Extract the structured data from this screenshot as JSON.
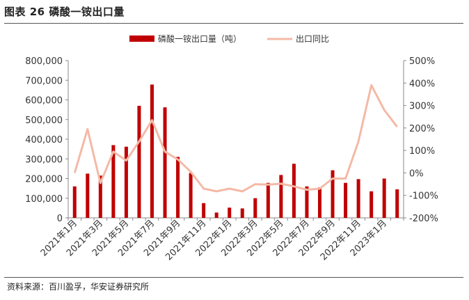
{
  "figure": {
    "title": "图表 26  磷酸一铵出口量",
    "source": "资料来源：百川盈孚，华安证券研究所"
  },
  "colors": {
    "bar": "#c00000",
    "line": "#f4b9a6",
    "rule": "#555555"
  },
  "chart_data": {
    "type": "bar",
    "title": "",
    "xlabel": "",
    "ylabel": "",
    "legend_position": "top",
    "grid": false,
    "categories": [
      "2021年1月",
      "2021年2月",
      "2021年3月",
      "2021年4月",
      "2021年5月",
      "2021年6月",
      "2021年7月",
      "2021年8月",
      "2021年9月",
      "2021年10月",
      "2021年11月",
      "2021年12月",
      "2022年1月",
      "2022年2月",
      "2022年3月",
      "2022年4月",
      "2022年5月",
      "2022年6月",
      "2022年7月",
      "2022年8月",
      "2022年9月",
      "2022年10月",
      "2022年11月",
      "2022年12月",
      "2023年1月",
      "2023年2月"
    ],
    "tick_labels": [
      "2021年1月",
      "2021年3月",
      "2021年5月",
      "2021年7月",
      "2021年9月",
      "2021年11月",
      "2022年1月",
      "2022年3月",
      "2022年5月",
      "2022年7月",
      "2022年9月",
      "2022年11月",
      "2023年1月"
    ],
    "y_left": {
      "min": 0,
      "max": 800000,
      "ticks": [
        "0",
        "100,000",
        "200,000",
        "300,000",
        "400,000",
        "500,000",
        "600,000",
        "700,000",
        "800,000"
      ]
    },
    "y_right": {
      "min": -200,
      "max": 500,
      "ticks": [
        "-200%",
        "-100%",
        "0%",
        "100%",
        "200%",
        "300%",
        "400%",
        "500%"
      ]
    },
    "series": [
      {
        "name": "磷酸一铵出口量（吨）",
        "type": "bar",
        "axis": "left",
        "values": [
          160000,
          225000,
          215000,
          370000,
          362000,
          570000,
          678000,
          562000,
          310000,
          228000,
          75000,
          27000,
          52000,
          48000,
          100000,
          178000,
          218000,
          275000,
          160000,
          155000,
          242000,
          178000,
          197000,
          135000,
          200000,
          145000
        ]
      },
      {
        "name": "出口同比",
        "type": "line",
        "axis": "right",
        "values": [
          0,
          195,
          -45,
          95,
          55,
          140,
          235,
          95,
          60,
          5,
          -70,
          -82,
          -70,
          -82,
          -50,
          -52,
          -48,
          -60,
          -75,
          -70,
          -25,
          -25,
          140,
          390,
          280,
          205
        ]
      }
    ]
  }
}
